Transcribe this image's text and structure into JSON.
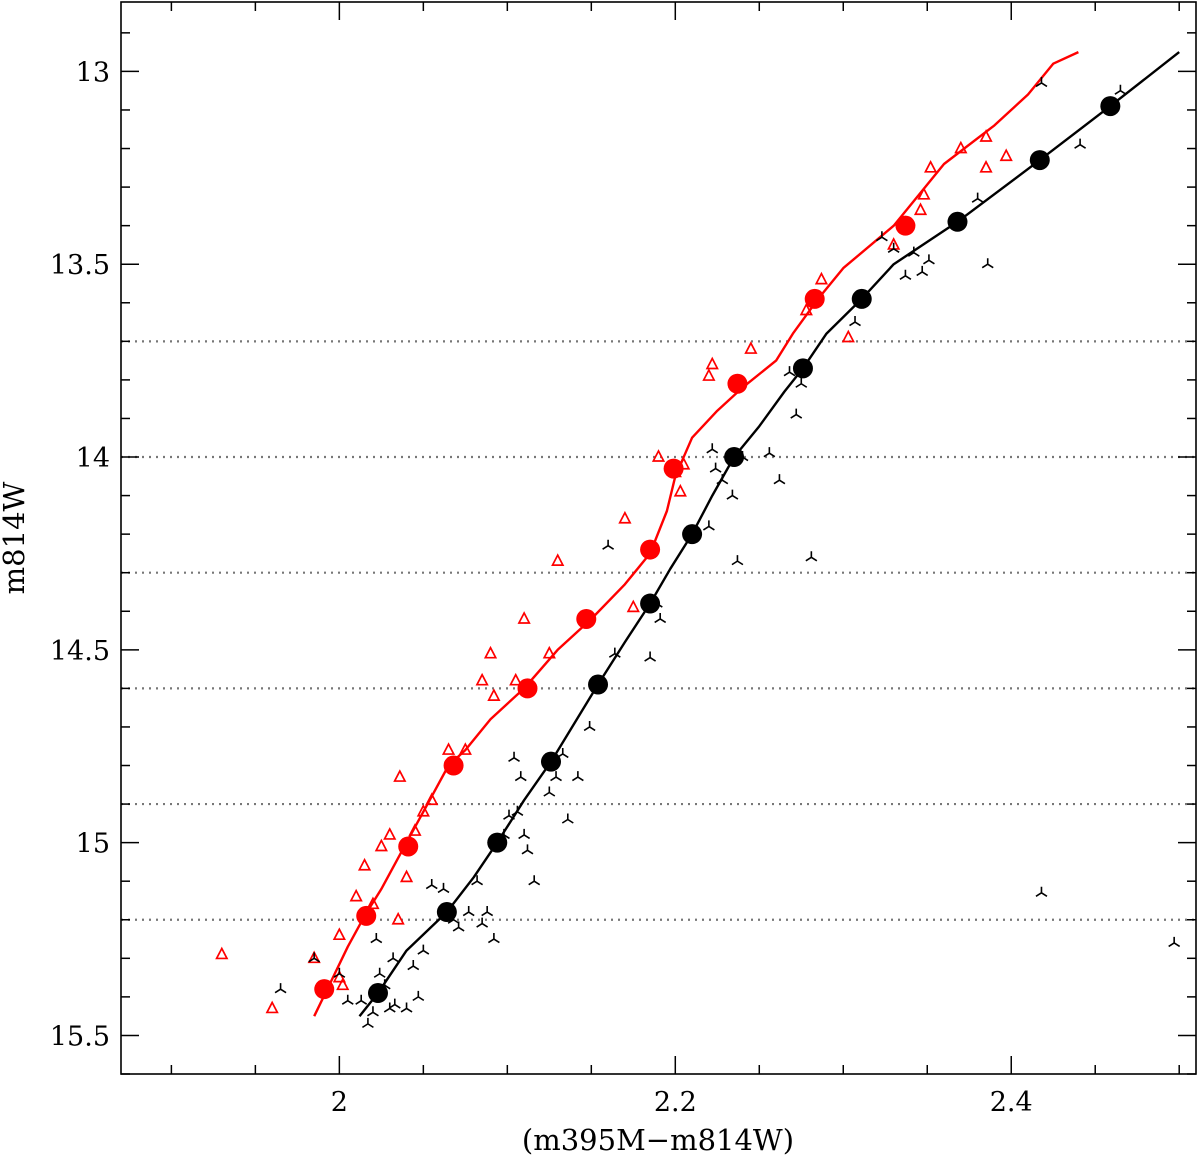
{
  "chart_data": {
    "type": "scatter",
    "title": "",
    "xlabel": "(m395M−m814W)",
    "ylabel": "m814W",
    "xlim": [
      1.87,
      2.51
    ],
    "ylim": [
      12.82,
      15.6
    ],
    "y_inverted": true,
    "grid": false,
    "x_ticks": [
      2.0,
      2.2,
      2.4
    ],
    "x_tick_labels": [
      "2",
      "2.2",
      "2.4"
    ],
    "x_minor_step": 0.05,
    "y_ticks": [
      13.0,
      13.5,
      14.0,
      14.5,
      15.0,
      15.5
    ],
    "y_tick_labels": [
      "13",
      "13.5",
      "14",
      "14.5",
      "15",
      "15.5"
    ],
    "y_minor_step": 0.1,
    "reference_lines_y": [
      13.7,
      14.0,
      14.3,
      14.6,
      14.9,
      15.2
    ],
    "colors": {
      "red": "#ff0000",
      "black": "#000000",
      "refline": "#777777"
    },
    "series": [
      {
        "color": "#ff0000",
        "kind": "ridge_points",
        "x": [
          1.991,
          2.016,
          2.041,
          2.068,
          2.112,
          2.147,
          2.185,
          2.199,
          2.237,
          2.283,
          2.337
        ],
        "y": [
          15.38,
          15.19,
          15.01,
          14.8,
          14.6,
          14.42,
          14.24,
          14.03,
          13.81,
          13.59,
          13.4
        ]
      },
      {
        "color": "#ff0000",
        "kind": "fiducial_line",
        "x": [
          1.985,
          1.995,
          2.005,
          2.015,
          2.025,
          2.035,
          2.045,
          2.055,
          2.065,
          2.075,
          2.09,
          2.11,
          2.13,
          2.15,
          2.17,
          2.185,
          2.195,
          2.2,
          2.21,
          2.225,
          2.24,
          2.26,
          2.27,
          2.285,
          2.3,
          2.33,
          2.36,
          2.39,
          2.41,
          2.425,
          2.44
        ],
        "y": [
          15.45,
          15.36,
          15.27,
          15.19,
          15.12,
          15.04,
          14.96,
          14.88,
          14.8,
          14.76,
          14.68,
          14.6,
          14.5,
          14.42,
          14.33,
          14.25,
          14.14,
          14.05,
          13.95,
          13.88,
          13.82,
          13.75,
          13.68,
          13.59,
          13.51,
          13.4,
          13.24,
          13.14,
          13.06,
          12.98,
          12.95
        ]
      },
      {
        "color": "#000000",
        "kind": "ridge_points",
        "x": [
          2.023,
          2.064,
          2.094,
          2.126,
          2.154,
          2.185,
          2.21,
          2.235,
          2.276,
          2.311,
          2.368,
          2.417,
          2.459
        ],
        "y": [
          15.39,
          15.18,
          15.0,
          14.79,
          14.59,
          14.38,
          14.2,
          14.0,
          13.77,
          13.59,
          13.39,
          13.23,
          13.09
        ]
      },
      {
        "color": "#000000",
        "kind": "fiducial_line",
        "x": [
          2.012,
          2.023,
          2.04,
          2.064,
          2.08,
          2.094,
          2.11,
          2.126,
          2.14,
          2.154,
          2.17,
          2.185,
          2.197,
          2.21,
          2.222,
          2.235,
          2.25,
          2.265,
          2.276,
          2.29,
          2.311,
          2.33,
          2.368,
          2.417,
          2.459,
          2.5
        ],
        "y": [
          15.45,
          15.39,
          15.28,
          15.18,
          15.09,
          15.0,
          14.89,
          14.79,
          14.69,
          14.59,
          14.48,
          14.38,
          14.29,
          14.2,
          14.1,
          14.0,
          13.92,
          13.83,
          13.77,
          13.68,
          13.59,
          13.5,
          13.39,
          13.23,
          13.09,
          12.95
        ]
      },
      {
        "color": "#ff0000",
        "marker": "open_triangle",
        "kind": "stars",
        "x": [
          1.93,
          1.96,
          1.985,
          2.0,
          2.01,
          2.015,
          2.02,
          2.025,
          2.03,
          2.035,
          2.036,
          2.04,
          2.045,
          2.05,
          2.055,
          2.065,
          2.075,
          2.085,
          2.09,
          2.092,
          2.105,
          2.11,
          2.125,
          2.13,
          2.17,
          2.175,
          2.19,
          2.2,
          2.203,
          2.205,
          2.22,
          2.222,
          2.245,
          2.278,
          2.287,
          2.303,
          2.33,
          2.346,
          2.348,
          2.352,
          2.37,
          2.385,
          2.385,
          2.397,
          2.002,
          2.0
        ],
        "y": [
          15.29,
          15.43,
          15.3,
          15.24,
          15.14,
          15.06,
          15.16,
          15.01,
          14.98,
          15.2,
          14.83,
          15.09,
          14.97,
          14.92,
          14.89,
          14.76,
          14.76,
          14.58,
          14.51,
          14.62,
          14.58,
          14.42,
          14.51,
          14.27,
          14.16,
          14.39,
          14.0,
          14.04,
          14.09,
          14.02,
          13.79,
          13.76,
          13.72,
          13.62,
          13.54,
          13.69,
          13.45,
          13.36,
          13.32,
          13.25,
          13.2,
          13.17,
          13.25,
          13.22,
          15.37,
          15.35
        ]
      },
      {
        "color": "#000000",
        "marker": "tripod",
        "kind": "stars",
        "x": [
          1.965,
          1.985,
          2.0,
          2.005,
          2.013,
          2.017,
          2.02,
          2.022,
          2.024,
          2.027,
          2.03,
          2.032,
          2.033,
          2.04,
          2.044,
          2.047,
          2.05,
          2.055,
          2.062,
          2.068,
          2.071,
          2.077,
          2.082,
          2.085,
          2.088,
          2.092,
          2.098,
          2.101,
          2.104,
          2.106,
          2.108,
          2.11,
          2.112,
          2.116,
          2.125,
          2.129,
          2.133,
          2.136,
          2.142,
          2.149,
          2.16,
          2.164,
          2.185,
          2.189,
          2.191,
          2.22,
          2.222,
          2.224,
          2.228,
          2.234,
          2.237,
          2.24,
          2.256,
          2.262,
          2.268,
          2.272,
          2.275,
          2.281,
          2.307,
          2.323,
          2.33,
          2.337,
          2.342,
          2.347,
          2.351,
          2.38,
          2.386,
          2.418,
          2.418,
          2.441,
          2.465,
          2.497
        ],
        "y": [
          15.38,
          15.3,
          15.34,
          15.41,
          15.41,
          15.47,
          15.44,
          15.25,
          15.34,
          15.37,
          15.43,
          15.3,
          15.42,
          15.43,
          15.32,
          15.4,
          15.28,
          15.11,
          15.12,
          15.2,
          15.22,
          15.18,
          15.1,
          15.21,
          15.18,
          15.25,
          14.98,
          14.93,
          14.78,
          14.92,
          14.83,
          14.98,
          15.02,
          15.1,
          14.87,
          14.83,
          14.77,
          14.94,
          14.83,
          14.7,
          14.23,
          14.51,
          14.52,
          14.38,
          14.42,
          14.18,
          13.98,
          14.03,
          14.06,
          14.1,
          14.27,
          14.0,
          13.99,
          14.06,
          13.78,
          13.89,
          13.81,
          14.26,
          13.65,
          13.43,
          13.46,
          13.53,
          13.47,
          13.52,
          13.49,
          13.33,
          13.5,
          13.03,
          15.13,
          13.19,
          13.05,
          15.26
        ]
      }
    ]
  }
}
